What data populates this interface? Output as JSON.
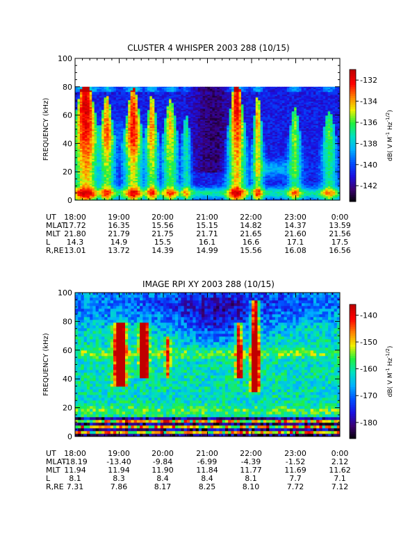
{
  "chart_data": [
    {
      "type": "heatmap",
      "title": "CLUSTER 4 WHISPER 2003 288 (10/15)",
      "ylabel": "FREQUENCY (kHz)",
      "ylim": [
        0,
        100
      ],
      "yticks": [
        "0",
        "20",
        "40",
        "60",
        "80",
        "100"
      ],
      "data_top_khz": 80,
      "colorbar": {
        "label": "dB( V M",
        "label_sup1": "-1",
        "label_mid": " Hz",
        "label_sup2": "-1/2",
        "label_end": ")",
        "range": [
          -143.5,
          -131
        ],
        "ticks": [
          "-132",
          "-134",
          "-136",
          "-138",
          "-140",
          "-142"
        ],
        "tick_values": [
          -132,
          -134,
          -136,
          -138,
          -140,
          -142
        ],
        "colormap": [
          "#000000",
          "#3a0070",
          "#1a10e0",
          "#0050ff",
          "#00b0ff",
          "#00e0c0",
          "#20f040",
          "#f0f000",
          "#ff8000",
          "#ff0000",
          "#c00000"
        ]
      },
      "ephemeris": {
        "labels": [
          "UT",
          "MLAT",
          "MLT",
          "L",
          "R,RE"
        ],
        "columns": [
          [
            "18:00",
            "17.72",
            "21.80",
            "14.3",
            "13.01"
          ],
          [
            "19:00",
            "16.35",
            "21.79",
            "14.9",
            "13.72"
          ],
          [
            "20:00",
            "15.56",
            "21.75",
            "15.5",
            "14.39"
          ],
          [
            "21:00",
            "15.15",
            "21.71",
            "16.1",
            "14.99"
          ],
          [
            "22:00",
            "14.82",
            "21.65",
            "16.6",
            "15.56"
          ],
          [
            "23:00",
            "14.37",
            "21.60",
            "17.1",
            "16.08"
          ],
          [
            "0:00",
            "13.59",
            "21.56",
            "17.5",
            "16.56"
          ]
        ]
      }
    },
    {
      "type": "heatmap",
      "title": "IMAGE RPI XY 2003 288 (10/15)",
      "ylabel": "FREQUENCY (kHz)",
      "ylim": [
        0,
        100
      ],
      "yticks": [
        "0",
        "20",
        "40",
        "60",
        "80",
        "100"
      ],
      "data_top_khz": 100,
      "colorbar": {
        "label": "dB( V M",
        "label_sup1": "-1",
        "label_mid": " Hz",
        "label_sup2": "-1/2",
        "label_end": ")",
        "range": [
          -186,
          -136
        ],
        "ticks": [
          "-140",
          "-150",
          "-160",
          "-170",
          "-180"
        ],
        "tick_values": [
          -140,
          -150,
          -160,
          -170,
          -180
        ],
        "colormap": [
          "#000000",
          "#3a0070",
          "#1a10e0",
          "#0050ff",
          "#00b0ff",
          "#00e0c0",
          "#20f040",
          "#f0f000",
          "#ff8000",
          "#ff0000",
          "#c00000"
        ]
      },
      "ephemeris": {
        "labels": [
          "UT",
          "MLAT",
          "MLT",
          "L",
          "R,RE"
        ],
        "columns": [
          [
            "18:00",
            "-18.19",
            "11.94",
            "8.1",
            "7.31"
          ],
          [
            "19:00",
            "-13.40",
            "11.94",
            "8.3",
            "7.86"
          ],
          [
            "20:00",
            "-9.84",
            "11.90",
            "8.4",
            "8.17"
          ],
          [
            "21:00",
            "-6.99",
            "11.84",
            "8.4",
            "8.25"
          ],
          [
            "22:00",
            "-4.39",
            "11.77",
            "8.1",
            "8.10"
          ],
          [
            "23:00",
            "-1.52",
            "11.69",
            "7.7",
            "7.72"
          ],
          [
            "0:00",
            "2.12",
            "11.62",
            "7.1",
            "7.12"
          ]
        ]
      }
    }
  ]
}
